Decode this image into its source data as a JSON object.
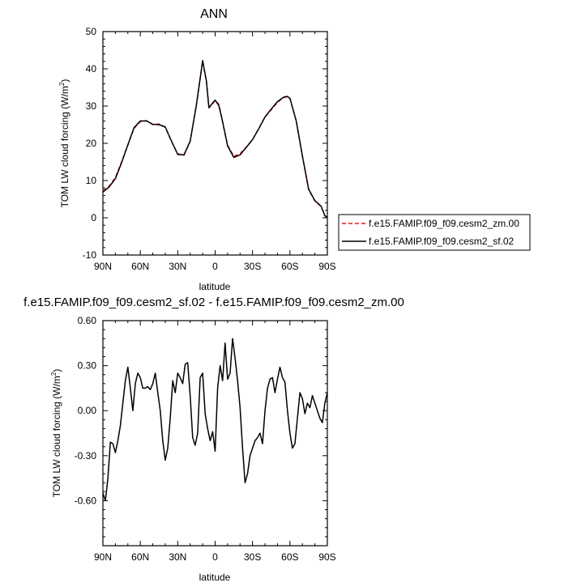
{
  "chart_data": [
    {
      "type": "line",
      "title": "ANN",
      "xlabel": "latitude",
      "ylabel": "TOM LW cloud forcing (W/m²)",
      "ylabel_main": "TOM LW cloud forcing (W/m",
      "ylabel_sup": "2",
      "ylabel_end": ")",
      "xlim": [
        90,
        -90
      ],
      "ylim": [
        -10,
        50
      ],
      "x_ticks": [
        90,
        60,
        30,
        0,
        -30,
        -60,
        -90
      ],
      "x_tick_labels": [
        "90N",
        "60N",
        "30N",
        "0",
        "30S",
        "60S",
        "90S"
      ],
      "y_ticks": [
        -10,
        0,
        10,
        20,
        30,
        40,
        50
      ],
      "y_tick_labels": [
        "-10",
        "0",
        "10",
        "20",
        "30",
        "40",
        "50"
      ],
      "grid": false,
      "legend_position": "right",
      "x": [
        90,
        85,
        80,
        75,
        70,
        65,
        60,
        55,
        50,
        45,
        40,
        35,
        30,
        25,
        20,
        15,
        10,
        7,
        5,
        3,
        0,
        -3,
        -5,
        -7,
        -10,
        -15,
        -20,
        -25,
        -30,
        -35,
        -40,
        -45,
        -50,
        -55,
        -58,
        -60,
        -65,
        -70,
        -75,
        -80,
        -85,
        -88,
        -90
      ],
      "series": [
        {
          "name": "f.e15.FAMIP.f09_f09.cesm2_zm.00",
          "color": "#e41a1c",
          "dash": "dashed",
          "values": [
            7.2,
            8.5,
            10.8,
            15.0,
            19.5,
            24.0,
            25.8,
            26.1,
            25.0,
            25.2,
            24.3,
            20.5,
            17.2,
            16.8,
            20.5,
            30.5,
            42.0,
            36.5,
            29.5,
            30.2,
            31.5,
            30.5,
            27.5,
            24.0,
            19.5,
            16.5,
            17.2,
            19.0,
            21.0,
            24.0,
            27.0,
            29.0,
            31.0,
            32.3,
            32.5,
            32.0,
            26.0,
            16.5,
            7.5,
            4.5,
            3.0,
            0.5,
            0.0
          ]
        },
        {
          "name": "f.e15.FAMIP.f09_f09.cesm2_sf.02",
          "color": "#000000",
          "dash": "solid",
          "values": [
            6.9,
            8.3,
            10.5,
            14.8,
            19.6,
            24.2,
            26.0,
            26.0,
            25.1,
            25.0,
            24.4,
            20.6,
            17.0,
            16.9,
            20.6,
            30.3,
            42.2,
            36.8,
            29.6,
            30.4,
            31.6,
            30.1,
            27.3,
            24.2,
            19.3,
            16.2,
            16.9,
            18.9,
            21.0,
            23.9,
            27.1,
            29.2,
            31.2,
            32.4,
            32.6,
            32.1,
            26.1,
            16.6,
            7.7,
            4.6,
            3.1,
            0.6,
            0.1
          ]
        }
      ]
    },
    {
      "type": "line",
      "title": "f.e15.FAMIP.f09_f09.cesm2_sf.02 - f.e15.FAMIP.f09_f09.cesm2_zm.00",
      "xlabel": "latitude",
      "ylabel": "TOM LW cloud forcing (W/m²)",
      "ylabel_main": "TOM LW cloud forcing (W/m",
      "ylabel_sup": "2",
      "ylabel_end": ")",
      "xlim": [
        90,
        -90
      ],
      "ylim": [
        -0.9,
        0.6
      ],
      "x_ticks": [
        90,
        60,
        30,
        0,
        -30,
        -60,
        -90
      ],
      "x_tick_labels": [
        "90N",
        "60N",
        "30N",
        "0",
        "30S",
        "60S",
        "90S"
      ],
      "y_ticks": [
        -0.6,
        -0.3,
        0.0,
        0.3,
        0.6
      ],
      "y_tick_labels": [
        "-0.60",
        "-0.30",
        "0.00",
        "0.30",
        "0.60"
      ],
      "grid": false,
      "series": [
        {
          "name": "",
          "color": "#000000",
          "dash": "solid",
          "x": [
            90,
            88,
            86,
            84,
            82,
            80,
            78,
            76,
            74,
            72,
            70,
            68,
            66,
            64,
            62,
            60,
            58,
            56,
            54,
            52,
            50,
            48,
            46,
            44,
            42,
            40,
            38,
            36,
            34,
            32,
            30,
            28,
            26,
            24,
            22,
            20,
            18,
            16,
            14,
            12,
            10,
            8,
            6,
            4,
            2,
            0,
            -2,
            -4,
            -6,
            -8,
            -10,
            -12,
            -14,
            -16,
            -18,
            -20,
            -22,
            -24,
            -26,
            -28,
            -30,
            -32,
            -34,
            -36,
            -38,
            -40,
            -42,
            -44,
            -46,
            -48,
            -50,
            -52,
            -54,
            -56,
            -58,
            -60,
            -62,
            -64,
            -66,
            -68,
            -70,
            -72,
            -74,
            -76,
            -78,
            -80,
            -82,
            -84,
            -86,
            -88,
            -90
          ],
          "values": [
            -0.55,
            -0.6,
            -0.45,
            -0.21,
            -0.22,
            -0.28,
            -0.2,
            -0.1,
            0.05,
            0.2,
            0.29,
            0.15,
            0.0,
            0.18,
            0.25,
            0.22,
            0.15,
            0.15,
            0.16,
            0.14,
            0.18,
            0.25,
            0.12,
            0.0,
            -0.2,
            -0.33,
            -0.25,
            -0.05,
            0.2,
            0.12,
            0.25,
            0.22,
            0.18,
            0.31,
            0.32,
            0.1,
            -0.18,
            -0.23,
            -0.15,
            0.22,
            0.25,
            -0.02,
            -0.12,
            -0.2,
            -0.14,
            -0.27,
            0.15,
            0.3,
            0.2,
            0.45,
            0.21,
            0.25,
            0.48,
            0.35,
            0.2,
            0.02,
            -0.25,
            -0.48,
            -0.42,
            -0.3,
            -0.25,
            -0.2,
            -0.18,
            -0.15,
            -0.22,
            0.0,
            0.15,
            0.21,
            0.22,
            0.12,
            0.21,
            0.29,
            0.22,
            0.19,
            0.0,
            -0.15,
            -0.25,
            -0.22,
            -0.05,
            0.12,
            0.08,
            -0.02,
            0.05,
            0.02,
            0.1,
            0.05,
            0.0,
            -0.05,
            -0.08,
            0.05,
            0.12
          ]
        }
      ]
    }
  ]
}
